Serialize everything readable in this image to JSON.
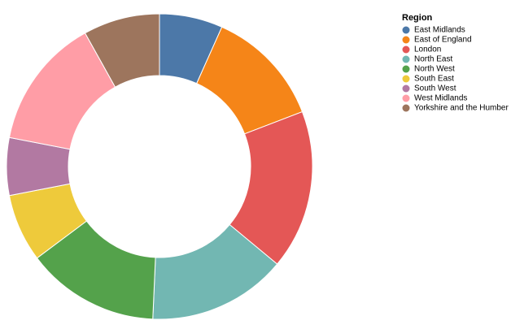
{
  "chart_data": {
    "type": "donut",
    "legend_title": "Region",
    "legend_position": "top-right",
    "categories": [
      "East Midlands",
      "East of England",
      "London",
      "North East",
      "North West",
      "South East",
      "South West",
      "West Midlands",
      "Yorkshire and the Humber"
    ],
    "values": [
      6.7,
      12.5,
      16.9,
      14.7,
      14.1,
      7.2,
      6.1,
      13.9,
      8.1
    ],
    "colors": [
      "#4c78a8",
      "#f58518",
      "#e45756",
      "#72b7b2",
      "#54a24b",
      "#eeca3b",
      "#b279a2",
      "#ff9da6",
      "#9d755d"
    ]
  }
}
